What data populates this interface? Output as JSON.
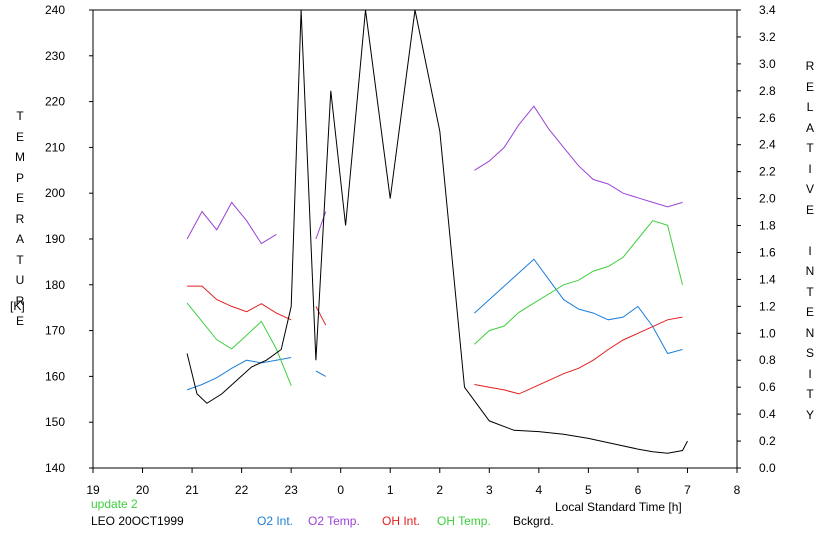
{
  "chart_data": {
    "type": "line",
    "left_axis": {
      "label": "TEMPERATURE",
      "unit": "[K]",
      "ylim": [
        140,
        240
      ],
      "ticks": [
        "240",
        "230",
        "220",
        "210",
        "200",
        "190",
        "180",
        "170",
        "160",
        "150",
        "140"
      ]
    },
    "right_axis": {
      "label": "RELATIVE INTENSITY",
      "ylim": [
        0.0,
        3.4
      ],
      "ticks": [
        "3.4",
        "3.2",
        "3.0",
        "2.8",
        "2.6",
        "2.4",
        "2.2",
        "2.0",
        "1.8",
        "1.6",
        "1.4",
        "1.2",
        "1.0",
        "0.8",
        "0.6",
        "0.4",
        "0.2",
        "0.0"
      ]
    },
    "x_axis": {
      "label": "Local Standard Time [h]",
      "xlim": [
        19,
        32
      ],
      "ticks": [
        "19",
        "20",
        "21",
        "22",
        "23",
        "0",
        "1",
        "2",
        "3",
        "4",
        "5",
        "6",
        "7",
        "8"
      ]
    },
    "grid": false,
    "series": [
      {
        "name": "O2 Int.",
        "color": "#1e7fd8",
        "axis": "right",
        "segments": [
          {
            "x": [
              20.9,
              21.2,
              21.5,
              21.8,
              22.1,
              22.4,
              22.7,
              23.0
            ],
            "y": [
              0.58,
              0.62,
              0.67,
              0.74,
              0.8,
              0.78,
              0.8,
              0.82
            ]
          },
          {
            "x": [
              23.5,
              23.7
            ],
            "y": [
              0.72,
              0.68
            ]
          },
          {
            "x": [
              26.7,
              27.0,
              27.3,
              27.6,
              27.9,
              28.2,
              28.5,
              28.8,
              29.1,
              29.4,
              29.7,
              30.0,
              30.3,
              30.6,
              30.9
            ],
            "y": [
              1.15,
              1.25,
              1.35,
              1.45,
              1.55,
              1.4,
              1.25,
              1.18,
              1.15,
              1.1,
              1.12,
              1.2,
              1.05,
              0.85,
              0.88
            ]
          }
        ]
      },
      {
        "name": "O2 Temp.",
        "color": "#9a43d6",
        "axis": "left",
        "segments": [
          {
            "x": [
              20.9,
              21.2,
              21.5,
              21.8,
              22.1,
              22.4,
              22.7
            ],
            "y": [
              190,
              196,
              192,
              198,
              194,
              189,
              191
            ]
          },
          {
            "x": [
              23.5,
              23.7
            ],
            "y": [
              190,
              196
            ]
          },
          {
            "x": [
              26.7,
              27.0,
              27.3,
              27.6,
              27.9,
              28.2,
              28.5,
              28.8,
              29.1,
              29.4,
              29.7,
              30.0,
              30.3,
              30.6,
              30.9
            ],
            "y": [
              205,
              207,
              210,
              215,
              219,
              214,
              210,
              206,
              203,
              202,
              200,
              199,
              198,
              197,
              198
            ]
          }
        ]
      },
      {
        "name": "OH Int.",
        "color": "#e02020",
        "axis": "right",
        "segments": [
          {
            "x": [
              20.9,
              21.2,
              21.5,
              21.8,
              22.1,
              22.4,
              22.7,
              23.0
            ],
            "y": [
              1.35,
              1.35,
              1.25,
              1.2,
              1.16,
              1.22,
              1.15,
              1.1
            ]
          },
          {
            "x": [
              23.5,
              23.7
            ],
            "y": [
              1.2,
              1.06
            ]
          },
          {
            "x": [
              26.7,
              27.0,
              27.3,
              27.6,
              27.9,
              28.2,
              28.5,
              28.8,
              29.1,
              29.4,
              29.7,
              30.0,
              30.3,
              30.6,
              30.9
            ],
            "y": [
              0.62,
              0.6,
              0.58,
              0.55,
              0.6,
              0.65,
              0.7,
              0.74,
              0.8,
              0.88,
              0.95,
              1.0,
              1.05,
              1.1,
              1.12
            ]
          }
        ]
      },
      {
        "name": "OH Temp.",
        "color": "#3ecf3e",
        "axis": "left",
        "segments": [
          {
            "x": [
              20.9,
              21.2,
              21.5,
              21.8,
              22.1,
              22.4,
              22.7,
              23.0
            ],
            "y": [
              176,
              172,
              168,
              166,
              169,
              172,
              166,
              158
            ]
          },
          {
            "x": [
              26.7,
              27.0,
              27.3,
              27.6,
              27.9,
              28.2,
              28.5,
              28.8,
              29.1,
              29.4,
              29.7,
              30.0,
              30.3,
              30.6,
              30.9
            ],
            "y": [
              167,
              170,
              171,
              174,
              176,
              178,
              180,
              181,
              183,
              184,
              186,
              190,
              194,
              193,
              180
            ]
          }
        ]
      },
      {
        "name": "Bckgrd.",
        "color": "#000000",
        "axis": "right",
        "segments": [
          {
            "x": [
              20.9,
              21.1,
              21.3,
              21.6,
              21.9,
              22.2,
              22.5,
              22.8,
              23.0,
              23.2,
              23.5,
              23.8,
              24.1,
              24.5,
              25.0,
              25.5,
              26.0,
              26.5,
              27.0,
              27.5,
              28.0,
              28.5,
              29.0,
              29.5,
              30.0,
              30.3,
              30.6,
              30.9,
              31.0
            ],
            "y": [
              0.85,
              0.55,
              0.48,
              0.55,
              0.65,
              0.75,
              0.8,
              0.88,
              1.2,
              3.4,
              0.8,
              2.8,
              1.8,
              3.4,
              2.0,
              3.4,
              2.5,
              0.6,
              0.35,
              0.28,
              0.27,
              0.25,
              0.22,
              0.18,
              0.14,
              0.12,
              0.11,
              0.13,
              0.2
            ]
          }
        ]
      }
    ]
  },
  "footer": {
    "update": "update 2",
    "station": "LEO 20OCT1999",
    "legend_order": [
      "O2 Int.",
      "O2 Temp.",
      "OH Int.",
      "OH Temp.",
      "Bckgrd."
    ],
    "update_color": "#3ecf3e"
  }
}
